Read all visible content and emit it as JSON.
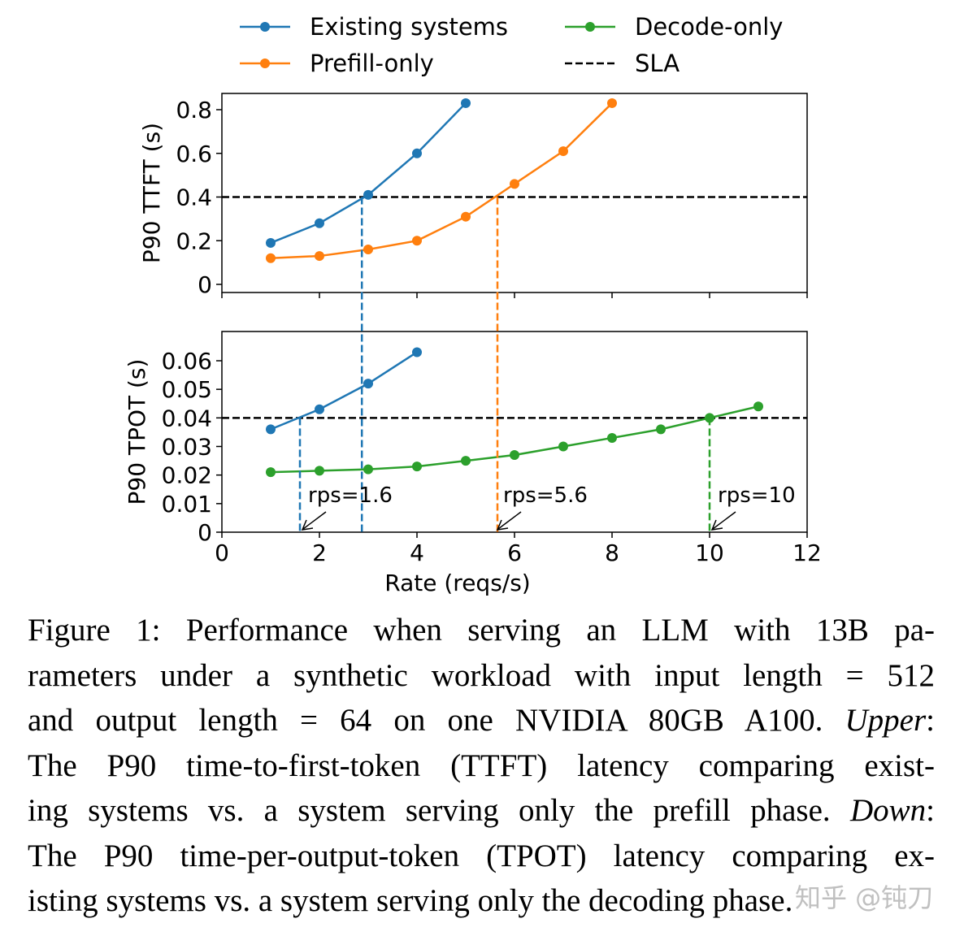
{
  "chart_data": {
    "type": "line",
    "legend": {
      "placement": "top",
      "entries": [
        {
          "label": "Existing systems",
          "color": "#1f77b4",
          "style": "line-marker"
        },
        {
          "label": "Decode-only",
          "color": "#2ca02c",
          "style": "line-marker"
        },
        {
          "label": "Prefill-only",
          "color": "#ff7f0e",
          "style": "line-marker"
        },
        {
          "label": "SLA",
          "color": "#000000",
          "style": "dashed"
        }
      ]
    },
    "xlabel": "Rate (reqs/s)",
    "xlim": [
      0,
      12
    ],
    "xticks": [
      "0",
      "2",
      "4",
      "6",
      "8",
      "10",
      "12"
    ],
    "panels": [
      {
        "ylabel": "P90 TTFT (s)",
        "ylim": [
          0,
          0.8
        ],
        "yticks": [
          "0",
          "0.2",
          "0.4",
          "0.6",
          "0.8"
        ],
        "sla": 0.4,
        "series": [
          {
            "name": "Existing systems",
            "color": "#1f77b4",
            "x": [
              1,
              2,
              3,
              4,
              5
            ],
            "y": [
              0.19,
              0.28,
              0.41,
              0.6,
              0.83
            ]
          },
          {
            "name": "Prefill-only",
            "color": "#ff7f0e",
            "x": [
              1,
              2,
              3,
              4,
              5,
              6,
              7,
              8
            ],
            "y": [
              0.12,
              0.13,
              0.16,
              0.2,
              0.31,
              0.46,
              0.61,
              0.83
            ]
          }
        ]
      },
      {
        "ylabel": "P90 TPOT (s)",
        "ylim": [
          0,
          0.06
        ],
        "yticks": [
          "0",
          "0.01",
          "0.02",
          "0.03",
          "0.04",
          "0.05",
          "0.06"
        ],
        "sla": 0.04,
        "series": [
          {
            "name": "Existing systems",
            "color": "#1f77b4",
            "x": [
              1,
              2,
              3,
              4
            ],
            "y": [
              0.036,
              0.043,
              0.052,
              0.063
            ]
          },
          {
            "name": "Decode-only",
            "color": "#2ca02c",
            "x": [
              1,
              2,
              3,
              4,
              5,
              6,
              7,
              8,
              9,
              10,
              11
            ],
            "y": [
              0.021,
              0.0215,
              0.022,
              0.023,
              0.025,
              0.027,
              0.03,
              0.033,
              0.036,
              0.04,
              0.044
            ]
          }
        ]
      }
    ],
    "crossings": [
      {
        "x": 2.87,
        "color": "#1f77b4",
        "span": "ttft"
      },
      {
        "x": 5.65,
        "color": "#ff7f0e",
        "span": "ttft"
      },
      {
        "x": 1.6,
        "color": "#1f77b4",
        "span": "tpot"
      },
      {
        "x": 10,
        "color": "#2ca02c",
        "span": "tpot"
      }
    ],
    "annotations": [
      {
        "text": "rps=1.6",
        "x": 1.6
      },
      {
        "text": "rps=5.6",
        "x": 5.6
      },
      {
        "text": "rps=10",
        "x": 10
      }
    ]
  },
  "caption": {
    "lines": [
      [
        {
          "t": "Figure 1: Performance when serving an LLM with 13B pa-"
        }
      ],
      [
        {
          "t": "rameters under a synthetic workload with input length = 512"
        }
      ],
      [
        {
          "t": "and output length = 64 on one NVIDIA 80GB A100. "
        },
        {
          "t": "Upper",
          "i": true
        },
        {
          "t": ":"
        }
      ],
      [
        {
          "t": "The P90 time-to-first-token (TTFT) latency comparing exist-"
        }
      ],
      [
        {
          "t": "ing systems vs. a system serving only the prefill phase. "
        },
        {
          "t": "Down",
          "i": true
        },
        {
          "t": ":"
        }
      ],
      [
        {
          "t": "The P90 time-per-output-token (TPOT) latency comparing ex-"
        }
      ],
      [
        {
          "t": "isting systems vs. a system serving only the decoding phase."
        }
      ]
    ]
  },
  "watermark": "知乎 @钝刀"
}
